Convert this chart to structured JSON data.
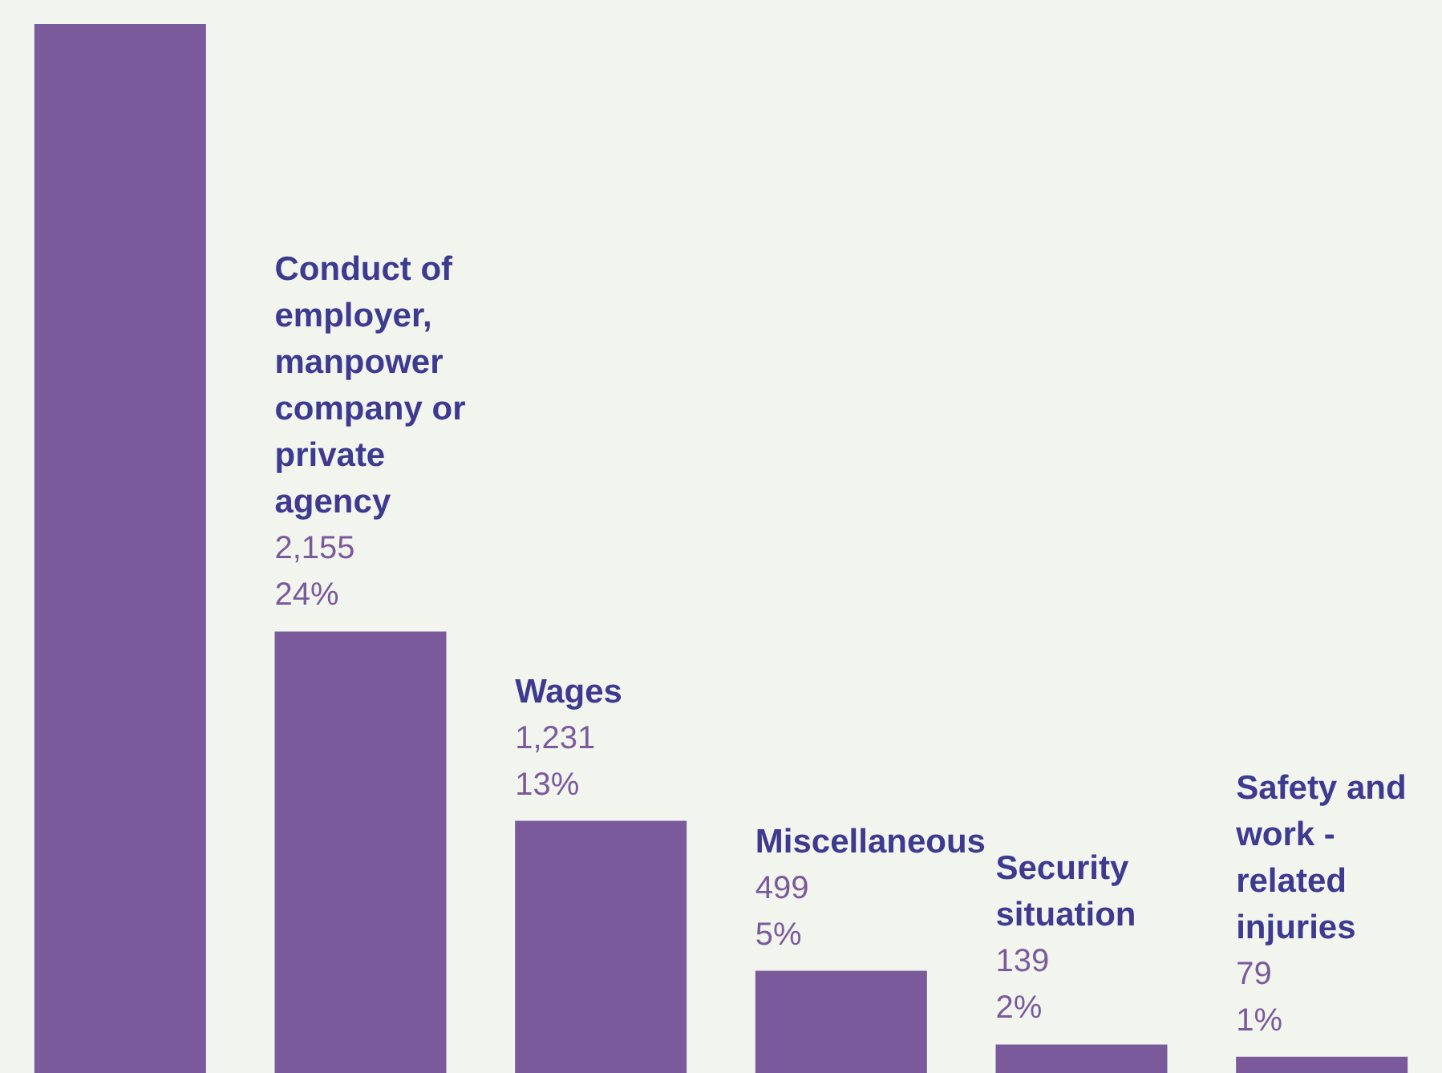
{
  "chart_data": {
    "type": "bar",
    "categories": [
      null,
      "Conduct of employer, manpower company or private agency",
      "Wages",
      "Miscellaneous",
      "Security situation",
      "Safety and work - related injuries"
    ],
    "values": [
      5120,
      2155,
      1231,
      499,
      139,
      79
    ],
    "value_labels": [
      null,
      "2,155\n24%",
      "1,231\n13%",
      "499\n5%",
      "139\n2%",
      "79\n1%"
    ],
    "color": "#7b5a9b"
  }
}
